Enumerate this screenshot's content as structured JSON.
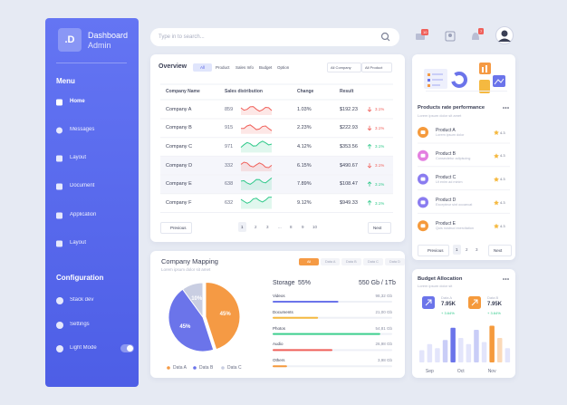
{
  "sidebar": {
    "logo": ".D",
    "title": "Dashboard",
    "subtitle": "Admin",
    "menu_heading": "Menu",
    "menu": [
      "Home",
      "Messages",
      "Layout",
      "Document",
      "Application",
      "Layout"
    ],
    "config_heading": "Configuration",
    "config": [
      "Stack dev",
      "Settings",
      "Light Mode"
    ]
  },
  "topbar": {
    "search_placeholder": "Type in to search...",
    "badges": [
      "10",
      "7"
    ]
  },
  "overview": {
    "title": "Overview",
    "tabs": [
      "All",
      "Product",
      "Sales Info",
      "Budget",
      "Option"
    ],
    "filters": [
      "All Company",
      "All Product"
    ],
    "columns": [
      "Company Name",
      "Sales distribution",
      "Change",
      "Result"
    ],
    "rows": [
      [
        "Company A",
        "859",
        "1.03%",
        "$192.23",
        "3.1%"
      ],
      [
        "Company B",
        "915",
        "2.23%",
        "$222.93",
        "3.1%"
      ],
      [
        "Company C",
        "971",
        "4.12%",
        "$353.56",
        "3.1%"
      ],
      [
        "Company D",
        "332",
        "6.15%",
        "$490.67",
        "3.1%"
      ],
      [
        "Company E",
        "638",
        "7.89%",
        "$108.47",
        "3.1%"
      ],
      [
        "Company F",
        "632",
        "9.12%",
        "$949.33",
        "3.1%"
      ]
    ],
    "trend": [
      "down",
      "down",
      "up",
      "down",
      "up",
      "up"
    ],
    "pagination": {
      "previous": "Previous",
      "pages": [
        "1",
        "2",
        "3",
        "...",
        "8",
        "9",
        "10"
      ],
      "next": "Next"
    }
  },
  "mapping": {
    "title": "Company Mapping",
    "subtitle": "Lorem ipsum dolor sit amet",
    "tabs": [
      "All",
      "Data A",
      "Data B",
      "Data C",
      "Data D"
    ],
    "pie": {
      "type": "pie",
      "values": [
        45,
        45,
        10
      ],
      "value_labels": [
        "45%",
        "45%",
        "10%"
      ],
      "colors": [
        "#f59a44",
        "#6b74ea",
        "#c9cee2"
      ],
      "legend": [
        "Data A",
        "Data B",
        "Data C"
      ]
    },
    "storage": {
      "label": "Storage",
      "percent": "55%",
      "total": "550 Gb / 1Tb",
      "items": [
        {
          "name": "Videos",
          "size": "98,32 Gb",
          "color": "#6b74ea"
        },
        {
          "name": "Documents",
          "size": "21,00 Gb",
          "color": "#f5b940"
        },
        {
          "name": "Photos",
          "size": "54,81 Gb",
          "color": "#3ecf8e"
        },
        {
          "name": "Audio",
          "size": "26,98 Gb",
          "color": "#f0605a"
        },
        {
          "name": "Others",
          "size": "3,98 Gb",
          "color": "#f59a3c"
        }
      ]
    }
  },
  "products": {
    "title": "Products rate performance",
    "subtitle": "Lorem ipsum dolor sit amet",
    "items": [
      {
        "name": "Product A",
        "desc": "Lorem ipsum dolor",
        "rating": "4.3",
        "color": "#f59a3c"
      },
      {
        "name": "Product B",
        "desc": "Consectetur adipiscing",
        "rating": "4.3",
        "color": "#e37fe0"
      },
      {
        "name": "Product C",
        "desc": "Ut enim ad minim",
        "rating": "4.3",
        "color": "#8a7cf0"
      },
      {
        "name": "Product D",
        "desc": "Excepteur sint occaecat",
        "rating": "4.3",
        "color": "#8a7cf0"
      },
      {
        "name": "Product E",
        "desc": "Quis nostrud exercitation",
        "rating": "4.3",
        "color": "#f59a3c"
      }
    ],
    "pagination": {
      "previous": "Previous",
      "pages": [
        "1",
        "2",
        "3"
      ],
      "next": "Next"
    }
  },
  "budget": {
    "title": "Budget Allocation",
    "subtitle": "Lorem ipsum dolor sit",
    "cards": [
      {
        "name": "Data A",
        "value": "7.95K",
        "change": "+ 3.64%",
        "color": "#6b74ea"
      },
      {
        "name": "Data B",
        "value": "7.95K",
        "change": "+ 3.64%",
        "color": "#f59a3c"
      }
    ],
    "chart": {
      "type": "bar",
      "categories": [
        null,
        "Sep",
        null,
        null,
        null,
        "Oct",
        null,
        null,
        null,
        "Nov",
        null,
        null
      ],
      "values": [
        30,
        45,
        35,
        55,
        85,
        60,
        45,
        80,
        50,
        90,
        60,
        35
      ],
      "colors": [
        "#e3e5fb",
        "#e3e5fb",
        "#e3e5fb",
        "#c9cdf7",
        "#6b74ea",
        "#e3e5fb",
        "#e3e5fb",
        "#c9cdf7",
        "#e3e5fb",
        "#f59a3c",
        "#fbd9b8",
        "#e3e5fb"
      ],
      "ylim": [
        0,
        100
      ]
    }
  }
}
